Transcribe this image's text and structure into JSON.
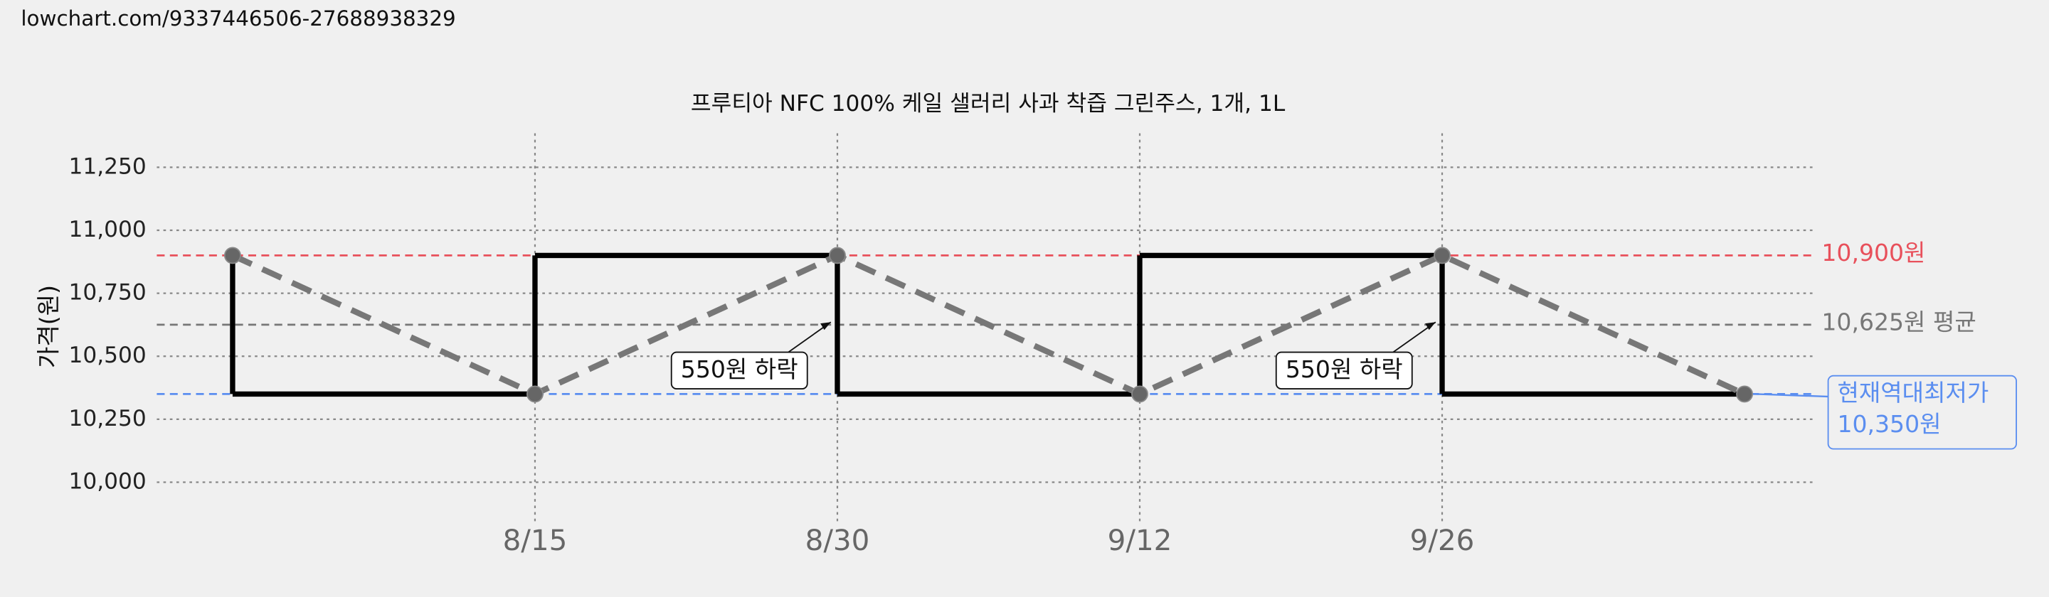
{
  "page_url": "lowchart.com/9337446506-27688938329",
  "chart_data": {
    "type": "step-line",
    "title": "프루티아 NFC 100% 케일 샐러리 사과 착즙 그린주스, 1개, 1L",
    "y_label": "가격(원)",
    "categories": [
      null,
      "8/15",
      "8/30",
      "9/12",
      "9/26",
      null
    ],
    "values": [
      10900,
      10350,
      10900,
      10350,
      10900,
      10350
    ],
    "color": "#000000",
    "trend_color": "#777777",
    "ylim": [
      9840,
      11385
    ],
    "yticks": [
      {
        "value": 10000,
        "label": "10,000"
      },
      {
        "value": 10250,
        "label": "10,250"
      },
      {
        "value": 10500,
        "label": "10,500"
      },
      {
        "value": 10750,
        "label": "10,750"
      },
      {
        "value": 11000,
        "label": "11,000"
      },
      {
        "value": 11250,
        "label": "11,250"
      }
    ],
    "grid": true,
    "reference_lines": [
      {
        "value": 10900,
        "label": [
          "10,900원"
        ],
        "color": "#e8505b"
      },
      {
        "value": 10625,
        "label": [
          "10,625원 평균"
        ],
        "color": "#777777"
      },
      {
        "value": 10350,
        "label": [
          "현재역대최저가",
          "10,350원"
        ],
        "color": "#5b8ef0"
      }
    ],
    "annotations": [
      {
        "text": "550원 하락",
        "point": 2
      },
      {
        "text": "550원 하락",
        "point": 4
      }
    ]
  }
}
